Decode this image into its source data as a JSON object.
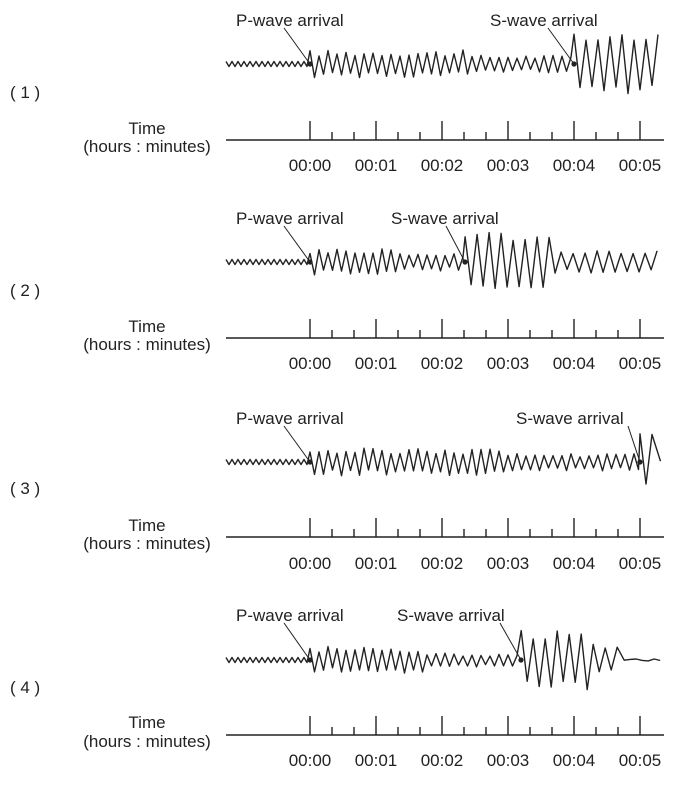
{
  "axis": {
    "label_line1": "Time",
    "label_line2": "(hours : minutes)",
    "ticks": [
      "00:00",
      "00:01",
      "00:02",
      "00:03",
      "00:04",
      "00:05"
    ]
  },
  "panels": [
    {
      "number": "( 1 )",
      "p_label": "P-wave arrival",
      "s_label": "S-wave arrival",
      "p_time_min": 0.0,
      "s_time_min": 4.0,
      "s_end_min": 5.35
    },
    {
      "number": "( 2 )",
      "p_label": "P-wave arrival",
      "s_label": "S-wave arrival",
      "p_time_min": 0.0,
      "s_time_min": 2.35,
      "s_end_min": 5.35
    },
    {
      "number": "( 3 )",
      "p_label": "P-wave arrival",
      "s_label": "S-wave arrival",
      "p_time_min": 0.0,
      "s_time_min": 5.0,
      "s_end_min": 5.25
    },
    {
      "number": "( 4 )",
      "p_label": "P-wave arrival",
      "s_label": "S-wave arrival",
      "p_time_min": 0.0,
      "s_time_min": 3.2,
      "s_end_min": 4.7
    }
  ]
}
